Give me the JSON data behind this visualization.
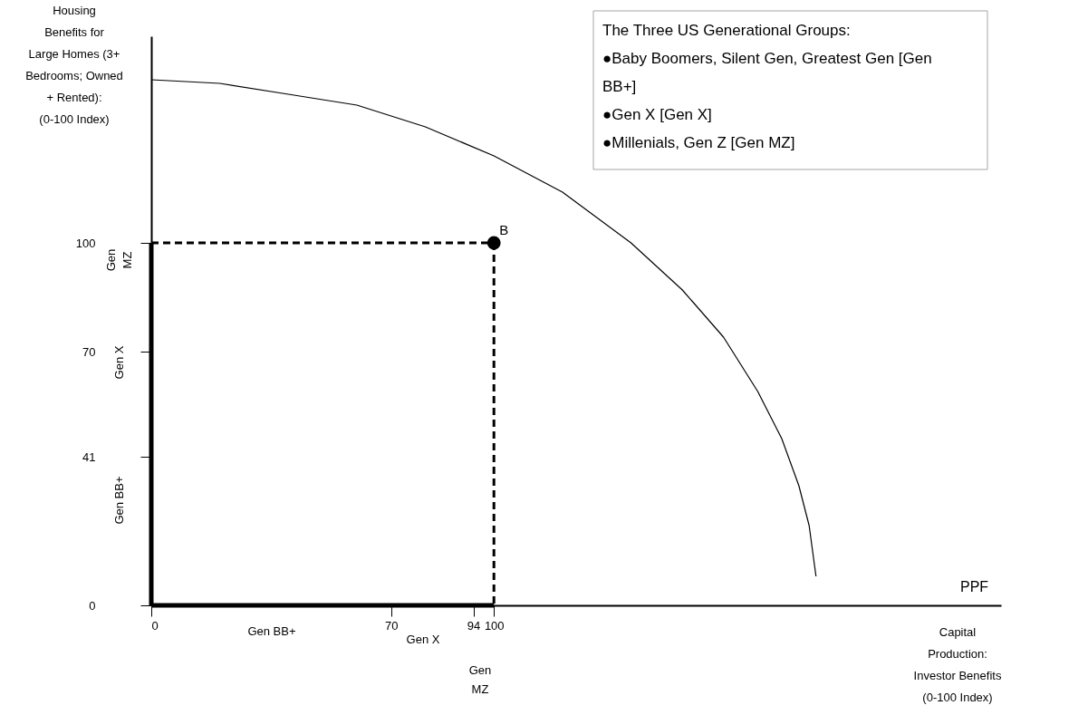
{
  "chart_data": {
    "type": "line",
    "xlabel": "Capital Production: Investor Benefits (0-100 Index)",
    "ylabel": "Housing Benefits for Large Homes (3+ Bedrooms; Owned + Rented): (0-100 Index)",
    "xlim": [
      0,
      248
    ],
    "ylim": [
      0,
      157
    ],
    "xticks": [
      0,
      70,
      94,
      100
    ],
    "yticks": [
      0,
      41,
      70,
      100
    ],
    "grid": false,
    "series": [
      {
        "color": "#000000",
        "line_style": "solid",
        "marker": "none",
        "x": [
          0,
          20,
          40,
          60,
          80,
          100,
          120,
          140,
          155,
          167,
          177,
          184,
          189,
          192,
          194
        ],
        "values": [
          145,
          144,
          141,
          138,
          132,
          124,
          114,
          100,
          87,
          74,
          59,
          46,
          33,
          22,
          8
        ]
      },
      {
        "color": "#000000",
        "line_style": "solid",
        "marker": "none",
        "x": [
          0,
          100
        ],
        "values": [
          0,
          0
        ]
      },
      {
        "color": "#000000",
        "line_style": "dashed",
        "marker": "none",
        "x": [
          0,
          100
        ],
        "values": [
          100,
          100
        ]
      },
      {
        "color": "#000000",
        "line_style": "solid",
        "marker": "none",
        "x": [
          0,
          0
        ],
        "values": [
          0,
          100
        ]
      },
      {
        "color": "#000000",
        "line_style": "dashed",
        "marker": "none",
        "x": [
          100,
          100
        ],
        "values": [
          100,
          0
        ]
      },
      {
        "type": "scatter",
        "color": "#000000",
        "marker": "circle",
        "x": [
          100
        ],
        "values": [
          100
        ]
      }
    ],
    "annotations": [
      {
        "text": "B",
        "x": 100,
        "y": 100
      },
      "PPF",
      "Gen BB+",
      "Gen X",
      "Gen MZ",
      "Gen MZ",
      "Gen X",
      "Gen BB+",
      "The Three US Generational Groups:",
      "●Baby Boomers, Silent Gen, Greatest Gen [Gen BB+]",
      "●Gen X [Gen X]",
      "●Millenials, Gen Z [Gen MZ]"
    ]
  }
}
